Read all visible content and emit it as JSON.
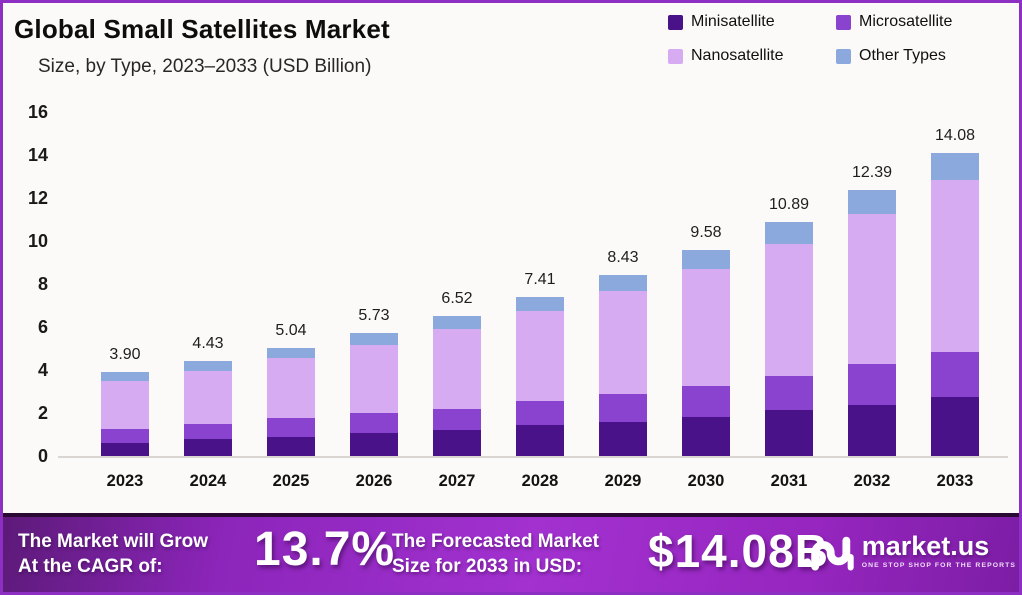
{
  "header": {
    "title": "Global Small Satellites Market",
    "subtitle": "Size, by Type, 2023–2033 (USD Billion)"
  },
  "colors": {
    "frame_border": "#8e2fc4",
    "banner_purple": "#9c27c0",
    "minisatellite": "#4a1289",
    "microsatellite": "#8a43cf",
    "nanosatellite": "#d7abf1",
    "other_types": "#8ca9dd"
  },
  "chart_data": {
    "type": "bar",
    "stacked": true,
    "title": "Global Small Satellites Market Size, by Type, 2023–2033 (USD Billion)",
    "xlabel": "",
    "ylabel": "",
    "ylim": [
      0,
      16
    ],
    "yticks": [
      0,
      2,
      4,
      6,
      8,
      10,
      12,
      14,
      16
    ],
    "grid": false,
    "legend_position": "top-right",
    "categories": [
      "2023",
      "2024",
      "2025",
      "2026",
      "2027",
      "2028",
      "2029",
      "2030",
      "2031",
      "2032",
      "2033"
    ],
    "series": [
      {
        "name": "Minisatellite",
        "color": "#4a1289",
        "values": [
          0.6,
          0.8,
          0.9,
          1.08,
          1.2,
          1.45,
          1.6,
          1.8,
          2.15,
          2.37,
          2.74
        ]
      },
      {
        "name": "Microsatellite",
        "color": "#8a43cf",
        "values": [
          0.65,
          0.7,
          0.88,
          0.9,
          1.0,
          1.1,
          1.28,
          1.47,
          1.55,
          1.9,
          2.1
        ]
      },
      {
        "name": "Nanosatellite",
        "color": "#d7abf1",
        "values": [
          2.25,
          2.45,
          2.76,
          3.2,
          3.72,
          4.21,
          4.8,
          5.41,
          6.16,
          6.99,
          8.0
        ]
      },
      {
        "name": "Other Types",
        "color": "#8ca9dd",
        "values": [
          0.4,
          0.48,
          0.5,
          0.55,
          0.6,
          0.65,
          0.75,
          0.9,
          1.03,
          1.13,
          1.24
        ]
      }
    ],
    "totals": [
      "3.90",
      "4.43",
      "5.04",
      "5.73",
      "6.52",
      "7.41",
      "8.43",
      "9.58",
      "10.89",
      "12.39",
      "14.08"
    ]
  },
  "footer": {
    "cagr_label_line1": "The Market will Grow",
    "cagr_label_line2": "At the CAGR of:",
    "cagr_value": "13.7%",
    "forecast_label_line1": "The Forecasted Market",
    "forecast_label_line2": "Size for 2033 in USD:",
    "forecast_value": "$14.08B",
    "brand": "market.us",
    "brand_tagline": "ONE STOP SHOP FOR THE REPORTS"
  }
}
